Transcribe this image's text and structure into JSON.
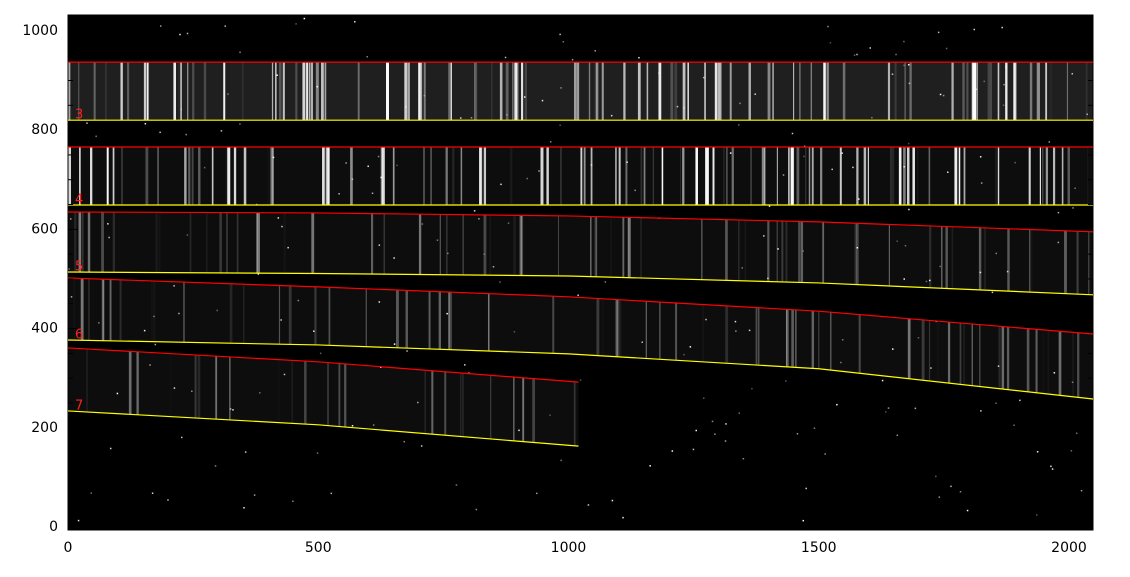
{
  "chart_data": {
    "type": "trace",
    "xlim": [
      0,
      2048
    ],
    "ylim": [
      -6,
      1032
    ],
    "xticks": [
      0,
      500,
      1000,
      1500,
      2000
    ],
    "yticks": [
      0,
      200,
      400,
      600,
      800,
      1000
    ],
    "xminorticks": [
      100,
      200,
      300,
      400,
      600,
      700,
      800,
      900,
      1100,
      1200,
      1300,
      1400,
      1600,
      1700,
      1800,
      1900
    ],
    "yminorticks": [
      50,
      100,
      150,
      250,
      300,
      350,
      450,
      500,
      550,
      650,
      700,
      750,
      850,
      900,
      950
    ],
    "series": [
      {
        "color": "#ff0000",
        "x": [
          0,
          500,
          1000,
          1500,
          2048
        ],
        "values": [
          937,
          937,
          937,
          937,
          937
        ]
      },
      {
        "color": "#ffff00",
        "label": "3",
        "x": [
          0,
          500,
          1000,
          1500,
          2048
        ],
        "values": [
          820,
          820,
          820,
          820,
          820
        ]
      },
      {
        "color": "#ff0000",
        "x": [
          0,
          500,
          1000,
          1500,
          2048
        ],
        "values": [
          766,
          766,
          766,
          766,
          766
        ]
      },
      {
        "color": "#ffff00",
        "label": "4",
        "x": [
          0,
          500,
          1000,
          1500,
          2048
        ],
        "values": [
          649,
          649,
          649,
          649,
          649
        ]
      },
      {
        "color": "#ff0000",
        "x": [
          0,
          500,
          1000,
          1500,
          2048
        ],
        "values": [
          635,
          633,
          627,
          615,
          595
        ]
      },
      {
        "color": "#ffff00",
        "label": "5",
        "x": [
          0,
          500,
          1000,
          1500,
          2048
        ],
        "values": [
          514,
          511,
          506,
          492,
          468
        ]
      },
      {
        "color": "#ff0000",
        "x": [
          0,
          500,
          1000,
          1500,
          2048
        ],
        "values": [
          502,
          484,
          464,
          435,
          389
        ]
      },
      {
        "color": "#ffff00",
        "label": "6",
        "x": [
          0,
          500,
          1000,
          1500,
          2048
        ],
        "values": [
          377,
          367,
          349,
          319,
          258
        ]
      },
      {
        "color": "#ff0000",
        "x": [
          0,
          500,
          1020
        ],
        "values": [
          361,
          333,
          292
        ]
      },
      {
        "color": "#ffff00",
        "label": "7",
        "x": [
          0,
          500,
          1020
        ],
        "values": [
          234,
          206,
          163
        ]
      }
    ]
  }
}
